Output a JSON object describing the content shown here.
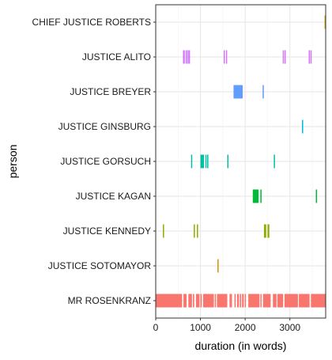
{
  "chart_data": {
    "type": "timeline",
    "title": "",
    "xlabel": "duration (in words)",
    "ylabel": "person",
    "xlim": [
      0,
      3800
    ],
    "x_ticks": [
      0,
      1000,
      2000,
      3000
    ],
    "grid": true,
    "legend": "none",
    "rows": [
      {
        "name": "CHIEF JUSTICE ROBERTS",
        "color": "#D4A017",
        "segments": [
          [
            3775,
            3800
          ]
        ]
      },
      {
        "name": "JUSTICE ALITO",
        "color": "#D575FE",
        "segments": [
          [
            610,
            650
          ],
          [
            670,
            700
          ],
          [
            710,
            730
          ],
          [
            740,
            760
          ],
          [
            1520,
            1535
          ],
          [
            1570,
            1585
          ],
          [
            2840,
            2855
          ],
          [
            2880,
            2895
          ],
          [
            3420,
            3440
          ],
          [
            3460,
            3480
          ]
        ]
      },
      {
        "name": "JUSTICE BREYER",
        "color": "#619CFF",
        "segments": [
          [
            1740,
            1945
          ],
          [
            2390,
            2405
          ]
        ]
      },
      {
        "name": "JUSTICE GINSBURG",
        "color": "#00B9E3",
        "segments": [
          [
            3270,
            3290
          ]
        ]
      },
      {
        "name": "JUSTICE GORSUCH",
        "color": "#00BFA5",
        "segments": [
          [
            790,
            805
          ],
          [
            1000,
            1080
          ],
          [
            1110,
            1135
          ],
          [
            1150,
            1170
          ],
          [
            1600,
            1620
          ],
          [
            2640,
            2660
          ]
        ]
      },
      {
        "name": "JUSTICE KAGAN",
        "color": "#00BA38",
        "segments": [
          [
            2170,
            2300
          ],
          [
            2340,
            2360
          ],
          [
            3580,
            3595
          ]
        ]
      },
      {
        "name": "JUSTICE KENNEDY",
        "color": "#93AA00",
        "segments": [
          [
            160,
            180
          ],
          [
            850,
            875
          ],
          [
            920,
            945
          ],
          [
            2420,
            2470
          ],
          [
            2500,
            2540
          ]
        ]
      },
      {
        "name": "JUSTICE SOTOMAYOR",
        "color": "#D39200",
        "segments": [
          [
            1380,
            1400
          ]
        ]
      },
      {
        "name": "MR ROSENKRANZ",
        "color": "#F8766D",
        "segments": [
          [
            0,
            590
          ],
          [
            620,
            690
          ],
          [
            730,
            810
          ],
          [
            830,
            860
          ],
          [
            900,
            980
          ],
          [
            1000,
            1030
          ],
          [
            1060,
            1300
          ],
          [
            1320,
            1345
          ],
          [
            1370,
            1600
          ],
          [
            1650,
            1705
          ],
          [
            1760,
            1790
          ],
          [
            1820,
            1860
          ],
          [
            1880,
            1910
          ],
          [
            1930,
            1970
          ],
          [
            1990,
            2000
          ],
          [
            2070,
            2320
          ],
          [
            2340,
            2350
          ],
          [
            2400,
            2570
          ],
          [
            2620,
            2700
          ],
          [
            2720,
            2850
          ],
          [
            2880,
            3180
          ],
          [
            3200,
            3440
          ],
          [
            3470,
            3800
          ]
        ]
      }
    ]
  }
}
